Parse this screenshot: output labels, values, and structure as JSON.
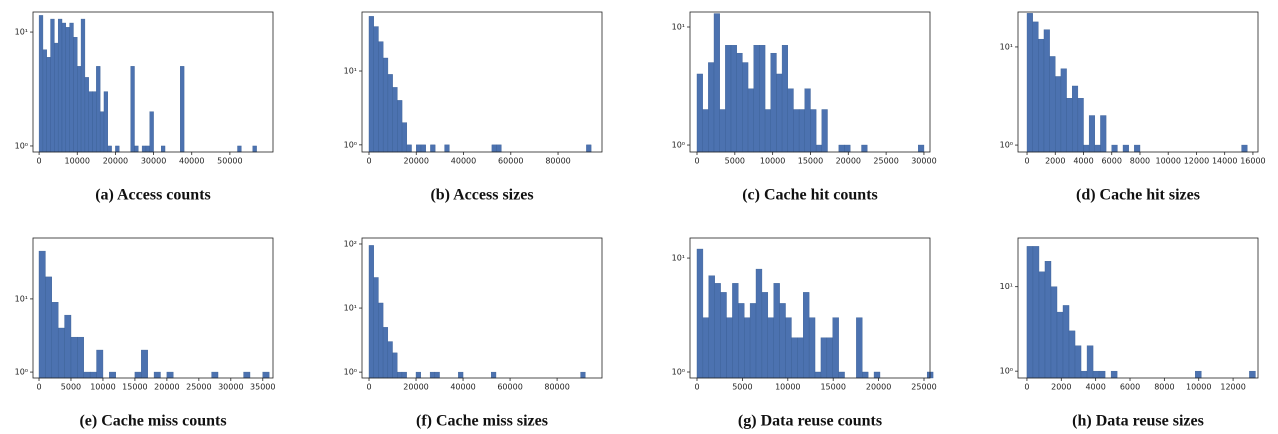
{
  "chart_data": [
    {
      "type": "histogram",
      "title": "(a) Access counts",
      "log_y": true,
      "color": "#4c72b0",
      "bins": [
        0,
        1000,
        2000,
        3000,
        4000,
        5000,
        6000,
        7000,
        8000,
        9000,
        10000,
        11000,
        12000,
        13000,
        14000,
        15000,
        16000,
        17000,
        18000,
        19000,
        20000,
        21000,
        22000,
        23000,
        24000,
        25000,
        26000,
        27000,
        28000,
        29000,
        30000,
        31000,
        32000,
        33000,
        34000,
        35000,
        36000,
        37000,
        38000,
        39000,
        40000,
        41000,
        42000,
        43000,
        44000,
        45000,
        46000,
        47000,
        48000,
        49000,
        50000,
        51000,
        52000,
        53000,
        54000,
        55000,
        56000,
        57000
      ],
      "counts": [
        14,
        7,
        6,
        13,
        8,
        13,
        12,
        11,
        12,
        9,
        5,
        13,
        4,
        3,
        3,
        5,
        2,
        3,
        1,
        0,
        1,
        0,
        0,
        0,
        5,
        1,
        0,
        1,
        1,
        2,
        0,
        0,
        1,
        0,
        0,
        0,
        0,
        5,
        0,
        0,
        0,
        0,
        0,
        0,
        0,
        0,
        0,
        0,
        0,
        0,
        0,
        0,
        1,
        0,
        0,
        0,
        1
      ],
      "xlim": [
        -1600,
        61300
      ],
      "xticks": [
        0,
        10000,
        20000,
        30000,
        40000,
        50000
      ],
      "ylim": [
        0.885,
        15
      ],
      "yticks": [
        {
          "value": 1,
          "label": "10⁰"
        },
        {
          "value": 10,
          "label": "10¹"
        }
      ]
    },
    {
      "type": "histogram",
      "title": "(b) Access sizes",
      "log_y": true,
      "color": "#4c72b0",
      "bins": [
        0,
        2000,
        4000,
        6000,
        8000,
        10000,
        12000,
        14000,
        16000,
        18000,
        20000,
        22000,
        24000,
        26000,
        28000,
        30000,
        32000,
        34000,
        36000,
        38000,
        40000,
        42000,
        44000,
        46000,
        48000,
        50000,
        52000,
        54000,
        56000,
        58000,
        60000,
        62000,
        64000,
        66000,
        68000,
        70000,
        72000,
        74000,
        76000,
        78000,
        80000,
        82000,
        84000,
        86000,
        88000,
        90000,
        92000,
        94000
      ],
      "counts": [
        55,
        40,
        25,
        15,
        9,
        6,
        4,
        2,
        1,
        0,
        1,
        1,
        0,
        1,
        0,
        0,
        1,
        0,
        0,
        0,
        0,
        0,
        0,
        0,
        0,
        0,
        1,
        1,
        0,
        0,
        0,
        0,
        0,
        0,
        0,
        0,
        0,
        0,
        0,
        0,
        0,
        0,
        0,
        0,
        0,
        0,
        1
      ],
      "xlim": [
        -2960,
        98600
      ],
      "xticks": [
        0,
        20000,
        40000,
        60000,
        80000
      ],
      "ylim": [
        0.8,
        63
      ],
      "yticks": [
        {
          "value": 1,
          "label": "10⁰"
        },
        {
          "value": 10,
          "label": "10¹"
        }
      ]
    },
    {
      "type": "histogram",
      "title": "(c) Cache hit counts",
      "log_y": true,
      "color": "#4c72b0",
      "bins": [
        0,
        750,
        1500,
        2250,
        3000,
        3750,
        4500,
        5250,
        6000,
        6750,
        7500,
        8250,
        9000,
        9750,
        10500,
        11250,
        12000,
        12750,
        13500,
        14250,
        15000,
        15750,
        16500,
        17250,
        18000,
        18750,
        19500,
        20250,
        21000,
        21750,
        22500,
        23250,
        24000,
        24750,
        25500,
        26250,
        27000,
        27750,
        28500,
        29250,
        30000
      ],
      "counts": [
        4,
        2,
        5,
        13,
        2,
        7,
        7,
        6,
        5,
        3,
        7,
        7,
        2,
        6,
        4,
        7,
        3,
        2,
        2,
        3,
        2,
        1,
        2,
        0,
        0,
        1,
        1,
        0,
        0,
        1,
        0,
        0,
        0,
        0,
        0,
        0,
        0,
        0,
        0,
        1
      ],
      "xlim": [
        -925,
        30800
      ],
      "xticks": [
        0,
        5000,
        10000,
        15000,
        20000,
        25000,
        30000
      ],
      "ylim": [
        0.873,
        13.4
      ],
      "yticks": [
        {
          "value": 1,
          "label": "10⁰"
        },
        {
          "value": 10,
          "label": "10¹"
        }
      ]
    },
    {
      "type": "histogram",
      "title": "(d) Cache hit sizes",
      "log_y": true,
      "color": "#4c72b0",
      "bins": [
        0,
        400,
        800,
        1200,
        1600,
        2000,
        2400,
        2800,
        3200,
        3600,
        4000,
        4400,
        4800,
        5200,
        5600,
        6000,
        6400,
        6800,
        7200,
        7600,
        8000,
        8400,
        8800,
        9200,
        9600,
        10000,
        10400,
        10800,
        11200,
        11600,
        12000,
        12400,
        12800,
        13200,
        13600,
        14000,
        14400,
        14800,
        15200,
        15600
      ],
      "counts": [
        22,
        18,
        12,
        15,
        8,
        5,
        6,
        3,
        4,
        3,
        1,
        2,
        1,
        2,
        0,
        1,
        0,
        1,
        0,
        1,
        0,
        0,
        0,
        0,
        0,
        0,
        0,
        0,
        0,
        0,
        0,
        0,
        0,
        0,
        0,
        0,
        0,
        0,
        1
      ],
      "xlim": [
        -640,
        16360
      ],
      "xticks": [
        0,
        2000,
        4000,
        6000,
        8000,
        10000,
        12000,
        14000,
        16000
      ],
      "ylim": [
        0.85,
        22.7
      ],
      "yticks": [
        {
          "value": 1,
          "label": "10⁰"
        },
        {
          "value": 10,
          "label": "10¹"
        }
      ]
    },
    {
      "type": "histogram",
      "title": "(e) Cache miss counts",
      "log_y": true,
      "color": "#4c72b0",
      "bins": [
        0,
        1000,
        2000,
        3000,
        4000,
        5000,
        6000,
        7000,
        8000,
        9000,
        10000,
        11000,
        12000,
        13000,
        14000,
        15000,
        16000,
        17000,
        18000,
        19000,
        20000,
        21000,
        22000,
        23000,
        24000,
        25000,
        26000,
        27000,
        28000,
        29000,
        30000,
        31000,
        32000,
        33000,
        34000,
        35000,
        36000
      ],
      "counts": [
        45,
        20,
        9,
        4,
        6,
        3,
        3,
        1,
        1,
        2,
        0,
        1,
        0,
        0,
        0,
        1,
        2,
        0,
        1,
        0,
        1,
        0,
        0,
        0,
        0,
        0,
        0,
        1,
        0,
        0,
        0,
        0,
        1,
        0,
        0,
        1
      ],
      "xlim": [
        -940,
        36600
      ],
      "xticks": [
        0,
        5000,
        10000,
        15000,
        20000,
        25000,
        30000,
        35000
      ],
      "ylim": [
        0.83,
        68
      ],
      "yticks": [
        {
          "value": 1,
          "label": "10⁰"
        },
        {
          "value": 10,
          "label": "10¹"
        }
      ]
    },
    {
      "type": "histogram",
      "title": "(f) Cache miss sizes",
      "log_y": true,
      "color": "#4c72b0",
      "bins": [
        0,
        2000,
        4000,
        6000,
        8000,
        10000,
        12000,
        14000,
        16000,
        18000,
        20000,
        22000,
        24000,
        26000,
        28000,
        30000,
        32000,
        34000,
        36000,
        38000,
        40000,
        42000,
        44000,
        46000,
        48000,
        50000,
        52000,
        54000,
        56000,
        58000,
        60000,
        62000,
        64000,
        66000,
        68000,
        70000,
        72000,
        74000,
        76000,
        78000,
        80000,
        82000,
        84000,
        86000,
        88000,
        90000,
        92000
      ],
      "counts": [
        95,
        30,
        12,
        5,
        3,
        2,
        1,
        1,
        0,
        0,
        1,
        0,
        0,
        1,
        1,
        0,
        0,
        0,
        0,
        1,
        0,
        0,
        0,
        0,
        0,
        0,
        1,
        0,
        0,
        0,
        0,
        0,
        0,
        0,
        0,
        0,
        0,
        0,
        0,
        0,
        0,
        0,
        0,
        0,
        0,
        1
      ],
      "xlim": [
        -2980,
        99100
      ],
      "xticks": [
        0,
        20000,
        40000,
        60000,
        80000
      ],
      "ylim": [
        0.81,
        124
      ],
      "yticks": [
        {
          "value": 1,
          "label": "10⁰"
        },
        {
          "value": 10,
          "label": "10¹"
        },
        {
          "value": 100,
          "label": "10²"
        }
      ]
    },
    {
      "type": "histogram",
      "title": "(g) Data reuse counts",
      "log_y": true,
      "color": "#4c72b0",
      "bins": [
        0,
        650,
        1300,
        1950,
        2600,
        3250,
        3900,
        4550,
        5200,
        5850,
        6500,
        7150,
        7800,
        8450,
        9100,
        9750,
        10400,
        11050,
        11700,
        12350,
        13000,
        13650,
        14300,
        14950,
        15600,
        16250,
        16900,
        17550,
        18200,
        18850,
        19500,
        20150,
        20800,
        21450,
        22100,
        22750,
        23400,
        24050,
        24700,
        25350,
        26000
      ],
      "counts": [
        12,
        3,
        7,
        6,
        5,
        3,
        6,
        4,
        3,
        4,
        8,
        5,
        3,
        6,
        4,
        3,
        2,
        2,
        5,
        3,
        1,
        2,
        2,
        3,
        1,
        0,
        0,
        3,
        1,
        0,
        1,
        0,
        0,
        0,
        0,
        0,
        0,
        0,
        0,
        1
      ],
      "xlim": [
        -770,
        25660
      ],
      "xticks": [
        0,
        5000,
        10000,
        15000,
        20000,
        25000
      ],
      "ylim": [
        0.886,
        15
      ],
      "yticks": [
        {
          "value": 1,
          "label": "10⁰"
        },
        {
          "value": 10,
          "label": "10¹"
        }
      ]
    },
    {
      "type": "histogram",
      "title": "(h) Data reuse sizes",
      "log_y": true,
      "color": "#4c72b0",
      "bins": [
        0,
        350,
        700,
        1050,
        1400,
        1750,
        2100,
        2450,
        2800,
        3150,
        3500,
        3850,
        4200,
        4550,
        4900,
        5250,
        5600,
        5950,
        6300,
        6650,
        7000,
        7350,
        7700,
        8050,
        8400,
        8750,
        9100,
        9450,
        9800,
        10150,
        10500,
        10850,
        11200,
        11550,
        11900,
        12250,
        12600,
        12950,
        13300
      ],
      "counts": [
        30,
        30,
        15,
        20,
        10,
        5,
        6,
        3,
        2,
        1,
        2,
        1,
        1,
        0,
        1,
        0,
        0,
        0,
        0,
        0,
        0,
        0,
        0,
        0,
        0,
        0,
        0,
        0,
        1,
        0,
        0,
        0,
        0,
        0,
        0,
        0,
        0,
        1
      ],
      "xlim": [
        -520,
        13450
      ],
      "xticks": [
        0,
        2000,
        4000,
        6000,
        8000,
        10000,
        12000
      ],
      "ylim": [
        0.83,
        37.7
      ],
      "yticks": [
        {
          "value": 1,
          "label": "10⁰"
        },
        {
          "value": 10,
          "label": "10¹"
        }
      ]
    }
  ]
}
